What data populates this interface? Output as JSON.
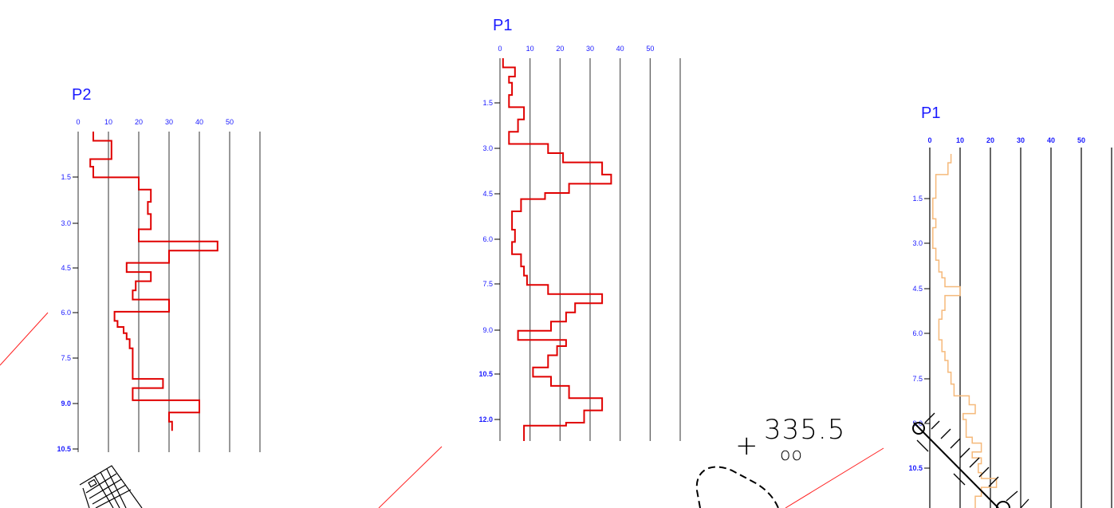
{
  "colors": {
    "title": "#1a1aff",
    "ticks": "#1a1aff",
    "grid": "#000000",
    "profile_red": "#e00000",
    "profile_orange": "#f5b97a",
    "leader": "#ff2020",
    "cad_black": "#000000"
  },
  "annotation": {
    "elevation_label": "335.5",
    "marker_glyph": "+",
    "small_circles": "oo"
  },
  "chart_data": [
    {
      "type": "line",
      "title": "P2",
      "x_axis_ticks": [
        "0",
        "10",
        "20",
        "30",
        "40",
        "50"
      ],
      "xlim": [
        0,
        60
      ],
      "y_axis_ticks": [
        "1.5",
        "3.0",
        "4.5",
        "6.0",
        "7.5",
        "9.0",
        "10.5"
      ],
      "ylim": [
        0,
        10.5
      ],
      "y_inverted": true,
      "x_values": [
        5,
        5,
        11,
        11,
        4,
        4,
        5,
        5,
        20,
        20,
        24,
        24,
        23,
        23,
        24,
        24,
        20,
        20,
        46,
        46,
        30,
        30,
        16,
        16,
        24,
        24,
        19,
        19,
        18,
        18,
        30,
        30,
        12,
        12,
        13,
        13,
        15,
        15,
        16,
        16,
        17,
        17,
        18,
        18,
        28,
        28,
        18,
        18,
        40,
        40,
        30,
        30,
        31,
        31
      ],
      "y_values": [
        0.0,
        0.3,
        0.3,
        0.9,
        0.9,
        1.15,
        1.15,
        1.5,
        1.5,
        1.9,
        1.9,
        2.3,
        2.3,
        2.7,
        2.7,
        3.2,
        3.2,
        3.6,
        3.6,
        3.9,
        3.9,
        4.3,
        4.3,
        4.6,
        4.6,
        4.9,
        4.9,
        5.2,
        5.2,
        5.5,
        5.5,
        5.9,
        5.9,
        6.2,
        6.2,
        6.4,
        6.4,
        6.6,
        6.6,
        6.8,
        6.8,
        7.1,
        7.1,
        8.1,
        8.1,
        8.4,
        8.4,
        8.8,
        8.8,
        9.2,
        9.2,
        9.5,
        9.5,
        9.8
      ]
    },
    {
      "type": "line",
      "title": "P1",
      "x_axis_ticks": [
        "0",
        "10",
        "20",
        "30",
        "40",
        "50"
      ],
      "xlim": [
        0,
        60
      ],
      "y_axis_ticks": [
        "1.5",
        "3.0",
        "4.5",
        "6.0",
        "7.5",
        "9.0",
        "10.5",
        "12.0"
      ],
      "ylim": [
        0,
        12.5
      ],
      "y_inverted": true,
      "x_values": [
        1,
        1,
        5,
        5,
        3,
        3,
        4,
        4,
        3,
        3,
        8,
        8,
        6,
        6,
        3,
        3,
        16,
        16,
        21,
        21,
        34,
        34,
        37,
        37,
        23,
        23,
        15,
        15,
        7,
        7,
        4,
        4,
        5,
        5,
        4,
        4,
        7,
        7,
        8,
        8,
        9,
        9,
        16,
        16,
        34,
        34,
        25,
        25,
        22,
        22,
        17,
        17,
        6,
        6,
        22,
        22,
        19,
        19,
        16,
        16,
        11,
        11,
        17,
        17,
        23,
        23,
        34,
        34,
        28,
        28,
        22,
        22,
        8,
        8,
        8
      ],
      "y_values": [
        0.0,
        0.3,
        0.3,
        0.6,
        0.6,
        0.8,
        0.8,
        1.2,
        1.2,
        1.6,
        1.6,
        2.0,
        2.0,
        2.4,
        2.4,
        2.8,
        2.8,
        3.1,
        3.1,
        3.4,
        3.4,
        3.8,
        3.8,
        4.1,
        4.1,
        4.4,
        4.4,
        4.6,
        4.6,
        5.0,
        5.0,
        5.6,
        5.6,
        6.0,
        6.0,
        6.4,
        6.4,
        6.8,
        6.8,
        7.1,
        7.1,
        7.4,
        7.4,
        7.7,
        7.7,
        8.0,
        8.0,
        8.3,
        8.3,
        8.6,
        8.6,
        8.9,
        8.9,
        9.2,
        9.2,
        9.4,
        9.4,
        9.7,
        9.7,
        10.1,
        10.1,
        10.4,
        10.4,
        10.7,
        10.7,
        11.1,
        11.1,
        11.5,
        11.5,
        11.9,
        11.9,
        12.0,
        12.0,
        12.3,
        12.5
      ]
    },
    {
      "type": "line",
      "title": "P1",
      "x_axis_ticks": [
        "0",
        "10",
        "20",
        "30",
        "40",
        "50"
      ],
      "xlim": [
        0,
        60
      ],
      "y_axis_ticks": [
        "1.5",
        "3.0",
        "4.5",
        "6.0",
        "7.5",
        "9.0",
        "10.5"
      ],
      "ylim": [
        0,
        12
      ],
      "y_inverted": true,
      "x_values": [
        7,
        7,
        6,
        6,
        2,
        2,
        1,
        1,
        2,
        2,
        1,
        1,
        2,
        2,
        3,
        3,
        4,
        4,
        5,
        5,
        10,
        10,
        5,
        5,
        4,
        4,
        3,
        3,
        4,
        4,
        5,
        5,
        6,
        6,
        7,
        7,
        8,
        8,
        13,
        13,
        15,
        15,
        11,
        11,
        12,
        12,
        14,
        14,
        17,
        17,
        14,
        14,
        17,
        17,
        16,
        16,
        17,
        17,
        22,
        22,
        17,
        17,
        15,
        15
      ],
      "y_values": [
        0.0,
        0.3,
        0.3,
        0.7,
        0.7,
        1.5,
        1.5,
        2.2,
        2.2,
        2.5,
        2.5,
        3.2,
        3.2,
        3.6,
        3.6,
        4.0,
        4.0,
        4.2,
        4.2,
        4.5,
        4.5,
        4.8,
        4.8,
        5.3,
        5.3,
        5.6,
        5.6,
        6.3,
        6.3,
        6.7,
        6.7,
        7.0,
        7.0,
        7.4,
        7.4,
        7.8,
        7.8,
        8.2,
        8.2,
        8.5,
        8.5,
        8.8,
        8.8,
        9.0,
        9.0,
        9.6,
        9.6,
        9.8,
        9.8,
        10.1,
        10.1,
        10.3,
        10.3,
        10.5,
        10.5,
        10.8,
        10.8,
        11.0,
        11.0,
        11.3,
        11.3,
        11.6,
        11.6,
        12.0
      ]
    }
  ]
}
